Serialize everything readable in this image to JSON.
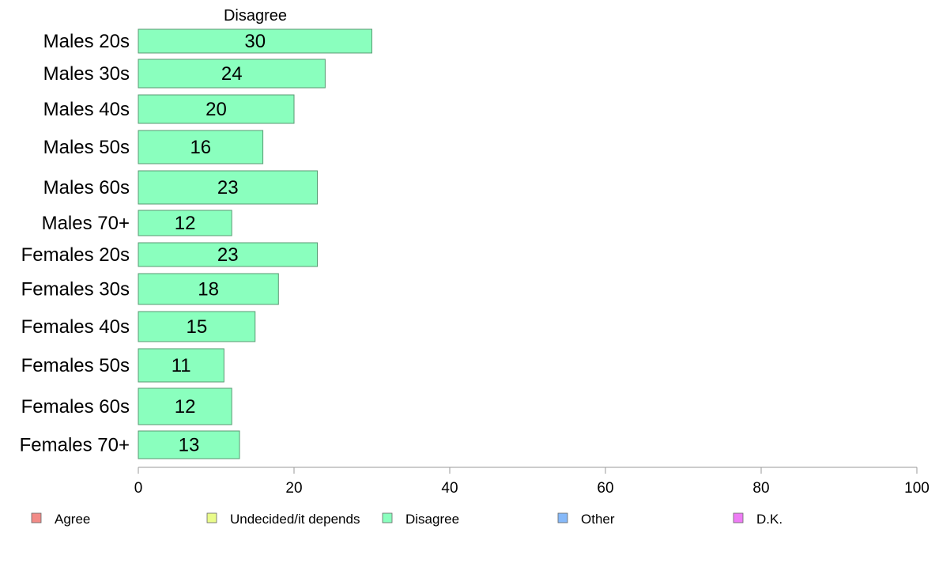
{
  "chart_data": {
    "type": "bar",
    "orientation": "horizontal",
    "title": "Disagree",
    "categories": [
      "Males 20s",
      "Males 30s",
      "Males 40s",
      "Males 50s",
      "Males 60s",
      "Males 70+",
      "Females 20s",
      "Females 30s",
      "Females 40s",
      "Females 50s",
      "Females 60s",
      "Females 70+"
    ],
    "series": [
      {
        "name": "Disagree",
        "values": [
          30,
          24,
          20,
          16,
          23,
          12,
          23,
          18,
          15,
          11,
          12,
          13
        ],
        "color": "#8affbe"
      }
    ],
    "xlim": [
      0,
      100
    ],
    "xticks": [
      0,
      20,
      40,
      60,
      80,
      100
    ],
    "grid": false,
    "legend_position": "bottom",
    "legend": [
      {
        "label": "Agree",
        "color": "#f28b87"
      },
      {
        "label": "Undecided/it depends",
        "color": "#e9fb8a"
      },
      {
        "label": "Disagree",
        "color": "#8affbe"
      },
      {
        "label": "Other",
        "color": "#86b9f9"
      },
      {
        "label": "D.K.",
        "color": "#ee7cf5"
      }
    ]
  }
}
